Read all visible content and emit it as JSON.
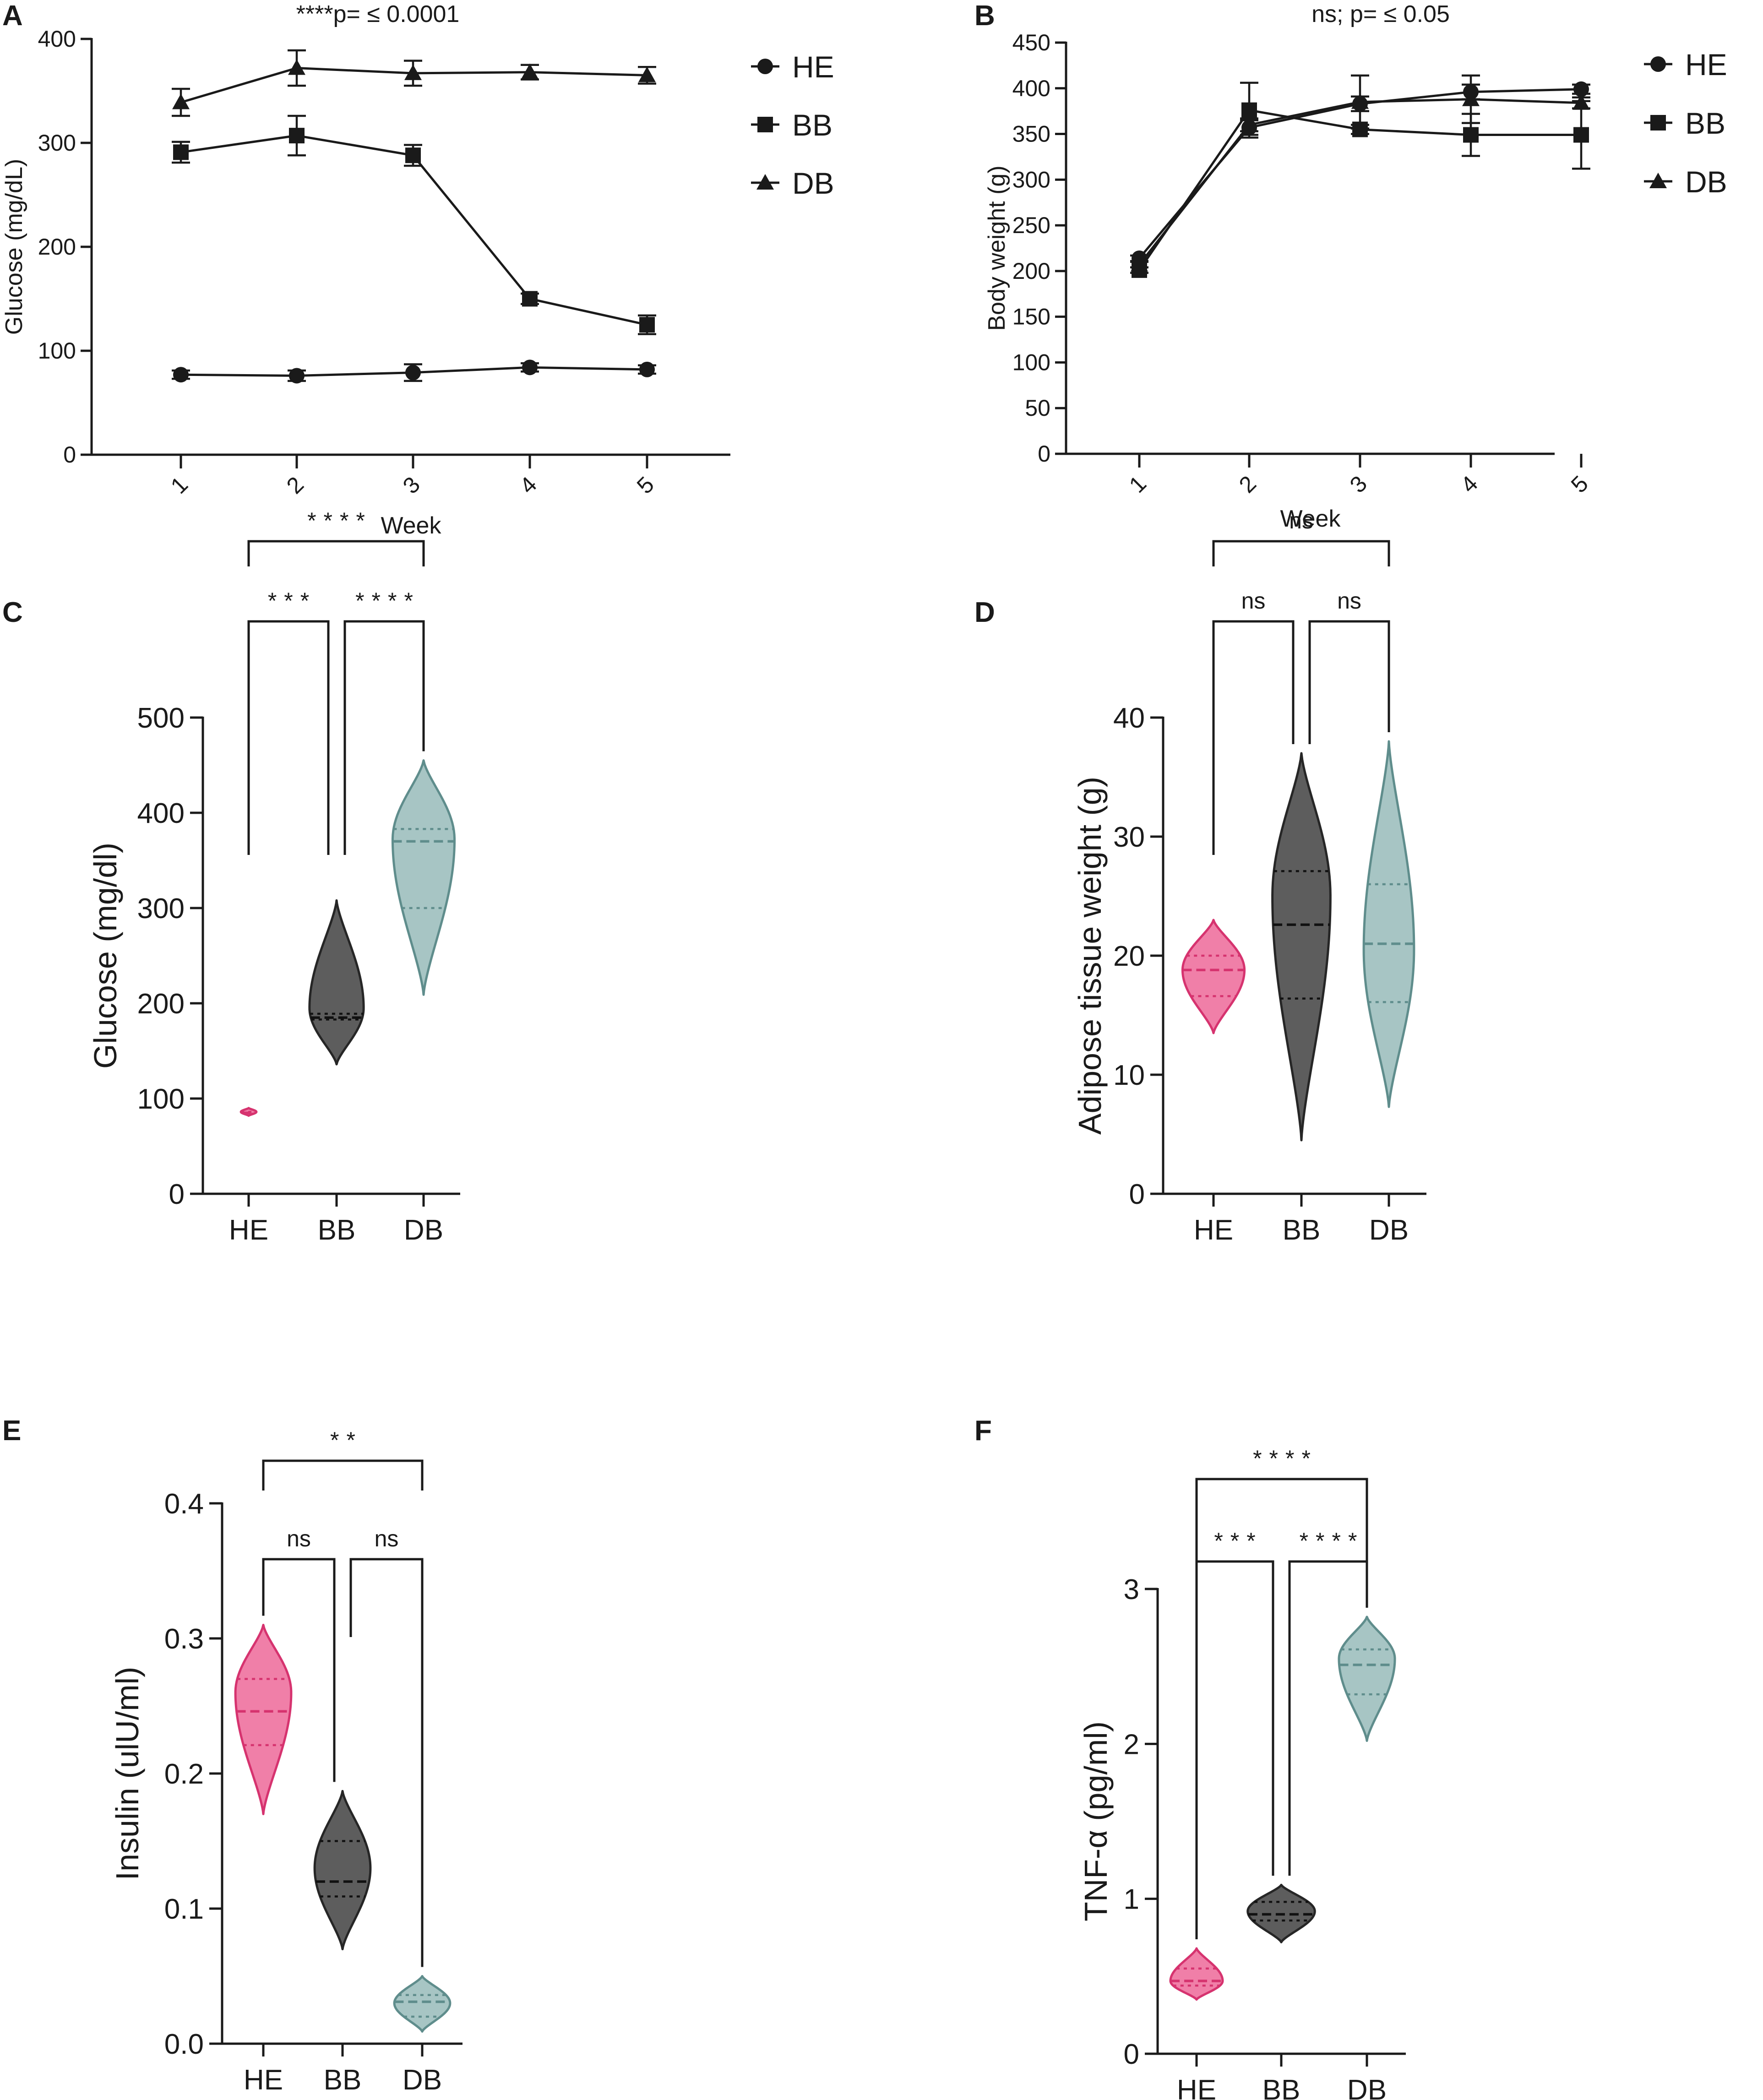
{
  "chart_data": [
    {
      "panel": "A",
      "type": "line",
      "title": "****p= ≤ 0.0001",
      "xlabel": "Week",
      "ylabel": "Glucose (mg/dL)",
      "x": [
        1,
        2,
        3,
        4,
        5
      ],
      "x_ticks": [
        "1",
        "2",
        "3",
        "4",
        "5"
      ],
      "ylim": [
        0,
        400
      ],
      "y_ticks": [
        0,
        100,
        200,
        300,
        400
      ],
      "series": [
        {
          "name": "HE",
          "marker": "circle",
          "values": [
            77,
            76,
            79,
            84,
            82
          ],
          "errors": [
            4,
            5,
            8,
            4,
            4
          ]
        },
        {
          "name": "BB",
          "marker": "square",
          "values": [
            291,
            307,
            288,
            150,
            125
          ],
          "errors": [
            10,
            19,
            10,
            5,
            9
          ]
        },
        {
          "name": "DB",
          "marker": "triangle",
          "values": [
            339,
            372,
            367,
            368,
            365
          ],
          "errors": [
            13,
            17,
            12,
            7,
            8
          ]
        }
      ]
    },
    {
      "panel": "B",
      "type": "line",
      "title": "ns; p= ≤ 0.05",
      "xlabel": "Week",
      "ylabel": "Body weight (g)",
      "x": [
        1,
        2,
        3,
        4,
        5
      ],
      "x_ticks": [
        "1",
        "2",
        "3",
        "4",
        "5"
      ],
      "ylim": [
        0,
        450
      ],
      "y_ticks": [
        0,
        50,
        100,
        150,
        200,
        250,
        300,
        350,
        400,
        450
      ],
      "series": [
        {
          "name": "HE",
          "marker": "circle",
          "values": [
            214,
            357,
            383,
            396,
            399
          ],
          "errors": [
            3,
            8,
            8,
            8,
            5
          ]
        },
        {
          "name": "BB",
          "marker": "square",
          "values": [
            201,
            376,
            355,
            349,
            349
          ],
          "errors": [
            3,
            30,
            5,
            23,
            37
          ]
        },
        {
          "name": "DB",
          "marker": "triangle",
          "values": [
            207,
            360,
            385,
            388,
            384
          ],
          "errors": [
            3,
            7,
            29,
            26,
            6
          ]
        }
      ]
    },
    {
      "panel": "C",
      "type": "violin",
      "ylabel": "Glucose (mg/dl)",
      "categories": [
        "HE",
        "BB",
        "DB"
      ],
      "ylim": [
        0,
        500
      ],
      "y_ticks": [
        0,
        100,
        200,
        300,
        400,
        500
      ],
      "groups": [
        {
          "name": "HE",
          "min": 82,
          "max": 90,
          "median": 85,
          "q1": 84,
          "q3": 86,
          "widest": 86,
          "max_halfwidth": 0.04
        },
        {
          "name": "BB",
          "min": 136,
          "max": 308,
          "median": 185,
          "q1": 183,
          "q3": 189,
          "widest": 195,
          "max_halfwidth": 0.14
        },
        {
          "name": "DB",
          "min": 209,
          "max": 455,
          "median": 370,
          "q1": 300,
          "q3": 383,
          "widest": 372,
          "max_halfwidth": 0.16
        }
      ],
      "comparisons": [
        {
          "from": "HE",
          "to": "BB",
          "label": "***"
        },
        {
          "from": "BB",
          "to": "DB",
          "label": "****"
        },
        {
          "from": "HE",
          "to": "DB",
          "label": "****"
        }
      ]
    },
    {
      "panel": "D",
      "type": "violin",
      "ylabel": "Adipose tissue weight (g)",
      "categories": [
        "HE",
        "BB",
        "DB"
      ],
      "ylim": [
        0,
        40
      ],
      "y_ticks": [
        0,
        10,
        20,
        30,
        40
      ],
      "groups": [
        {
          "name": "HE",
          "min": 13.5,
          "max": 23,
          "median": 18.8,
          "q1": 16.6,
          "q3": 20,
          "widest": 18.8,
          "max_halfwidth": 0.16
        },
        {
          "name": "BB",
          "min": 4.5,
          "max": 37,
          "median": 22.6,
          "q1": 16.4,
          "q3": 27.1,
          "widest": 25,
          "max_halfwidth": 0.15
        },
        {
          "name": "DB",
          "min": 7.3,
          "max": 38,
          "median": 21,
          "q1": 16.1,
          "q3": 26,
          "widest": 20.5,
          "max_halfwidth": 0.13
        }
      ],
      "comparisons": [
        {
          "from": "HE",
          "to": "BB",
          "label": "ns"
        },
        {
          "from": "BB",
          "to": "DB",
          "label": "ns"
        },
        {
          "from": "HE",
          "to": "DB",
          "label": "ns"
        }
      ]
    },
    {
      "panel": "E",
      "type": "violin",
      "ylabel": "Insulin (ulU/ml)",
      "categories": [
        "HE",
        "BB",
        "DB"
      ],
      "ylim": [
        0,
        0.4
      ],
      "y_ticks": [
        "0.0",
        "0.1",
        "0.2",
        "0.3",
        "0.4"
      ],
      "groups": [
        {
          "name": "HE",
          "min": 0.17,
          "max": 0.31,
          "median": 0.246,
          "q1": 0.221,
          "q3": 0.27,
          "widest": 0.26,
          "max_halfwidth": 0.16
        },
        {
          "name": "BB",
          "min": 0.07,
          "max": 0.187,
          "median": 0.12,
          "q1": 0.109,
          "q3": 0.15,
          "widest": 0.13,
          "max_halfwidth": 0.16
        },
        {
          "name": "DB",
          "min": 0.009,
          "max": 0.05,
          "median": 0.031,
          "q1": 0.02,
          "q3": 0.036,
          "widest": 0.03,
          "max_halfwidth": 0.16
        }
      ],
      "comparisons": [
        {
          "from": "HE",
          "to": "BB",
          "label": "ns"
        },
        {
          "from": "BB",
          "to": "DB",
          "label": "ns"
        },
        {
          "from": "HE",
          "to": "DB",
          "label": "**"
        }
      ]
    },
    {
      "panel": "F",
      "type": "violin",
      "ylabel": "TNF-α (pg/ml)",
      "categories": [
        "HE",
        "BB",
        "DB"
      ],
      "ylim": [
        0,
        3
      ],
      "y_ticks": [
        0,
        1,
        2,
        3
      ],
      "groups": [
        {
          "name": "HE",
          "min": 0.35,
          "max": 0.68,
          "median": 0.47,
          "q1": 0.44,
          "q3": 0.55,
          "widest": 0.47,
          "max_halfwidth": 0.14
        },
        {
          "name": "BB",
          "min": 0.72,
          "max": 1.09,
          "median": 0.9,
          "q1": 0.86,
          "q3": 0.98,
          "widest": 0.92,
          "max_halfwidth": 0.18
        },
        {
          "name": "DB",
          "min": 2.02,
          "max": 2.82,
          "median": 2.51,
          "q1": 2.32,
          "q3": 2.61,
          "widest": 2.55,
          "max_halfwidth": 0.15
        }
      ],
      "comparisons": [
        {
          "from": "HE",
          "to": "BB",
          "label": "***"
        },
        {
          "from": "BB",
          "to": "DB",
          "label": "****"
        },
        {
          "from": "HE",
          "to": "DB",
          "label": "****"
        }
      ]
    }
  ],
  "colors": {
    "HE_fill": "#f07fa8",
    "HE_stroke": "#d6336f",
    "BB_fill": "#5d5d5d",
    "BB_stroke": "#262626",
    "DB_fill": "#a7c5c4",
    "DB_stroke": "#5f8d8c",
    "ink": "#1a1a1a"
  }
}
